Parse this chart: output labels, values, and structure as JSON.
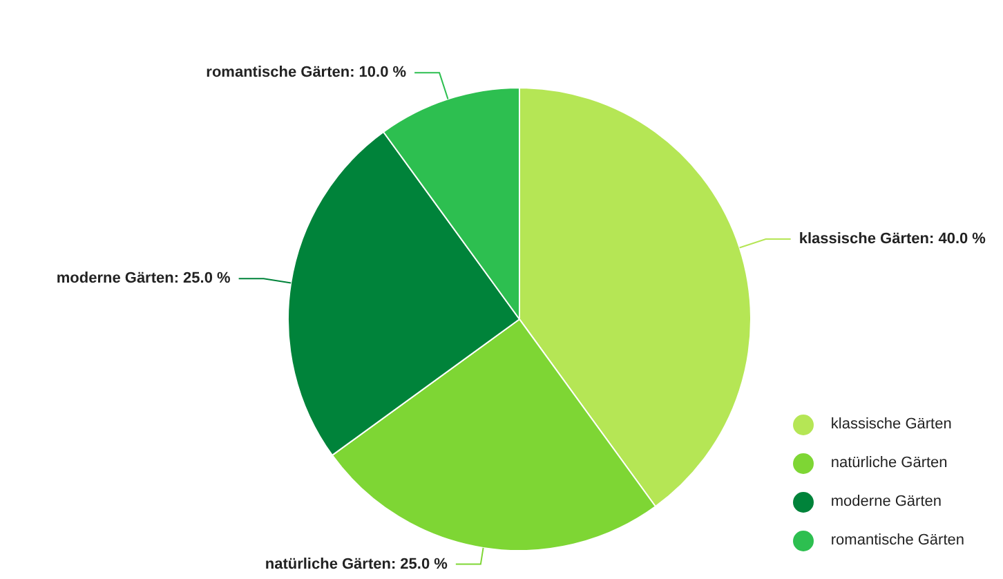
{
  "chart_data": {
    "type": "pie",
    "categories": [
      "klassische Gärten",
      "natürliche Gärten",
      "moderne Gärten",
      "romantische Gärten"
    ],
    "values": [
      40,
      25,
      25,
      10
    ],
    "value_labels": [
      "klassische Gärten: 40.0 %",
      "natürliche Gärten: 25.0 %",
      "moderne Gärten: 25.0 %",
      "romantische Gärten: 10.0 %"
    ],
    "colors": [
      "#b5e655",
      "#7ed634",
      "#00833a",
      "#2dbf50"
    ],
    "legend": "bottom right"
  }
}
